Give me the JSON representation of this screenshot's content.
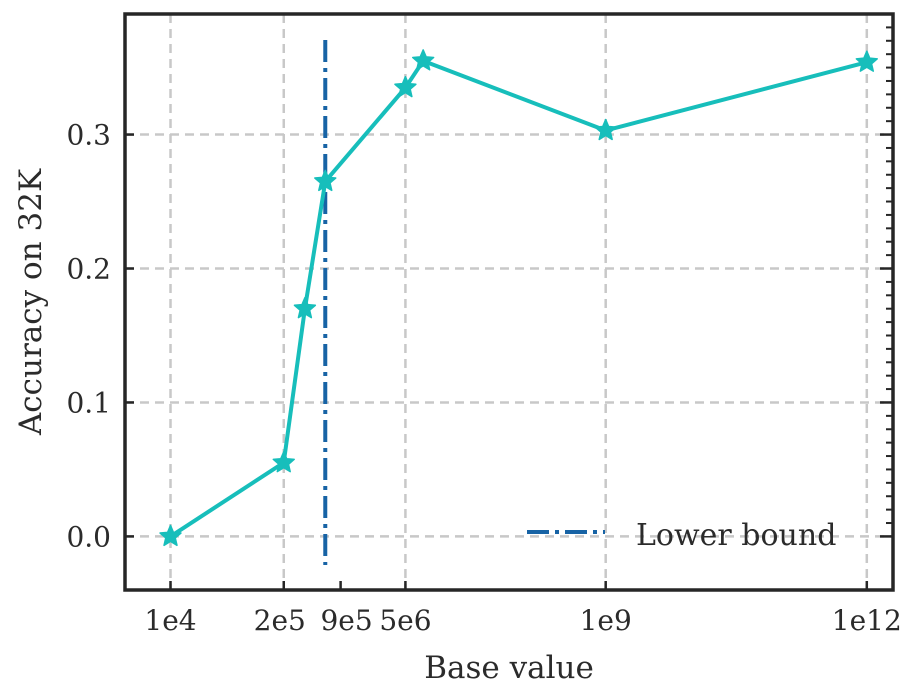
{
  "chart_data": {
    "type": "line",
    "title": "",
    "xlabel": "Base value",
    "ylabel": "Accuracy on 32K",
    "x_scale": "log",
    "xlim": [
      3000,
      2000000000000
    ],
    "ylim": [
      -0.04,
      0.39
    ],
    "grid": true,
    "legend_position": "bottom-right",
    "x_ticks": [
      {
        "value": 10000,
        "label": "1e4"
      },
      {
        "value": 200000,
        "label": "2e5"
      },
      {
        "value": 900000,
        "label": "9e5"
      },
      {
        "value": 5000000,
        "label": "5e6"
      },
      {
        "value": 1000000000,
        "label": "1e9"
      },
      {
        "value": 1000000000000,
        "label": "1e12"
      }
    ],
    "y_ticks": [
      {
        "value": 0.0,
        "label": "0.0"
      },
      {
        "value": 0.1,
        "label": "0.1"
      },
      {
        "value": 0.2,
        "label": "0.2"
      },
      {
        "value": 0.3,
        "label": "0.3"
      }
    ],
    "series": [
      {
        "name": "",
        "color": "#17bebb",
        "marker": "star",
        "x": [
          10000,
          200000,
          350000,
          600000,
          5000000,
          8000000,
          1000000000,
          1000000000000
        ],
        "y": [
          0.0,
          0.055,
          0.17,
          0.265,
          0.335,
          0.355,
          0.303,
          0.354
        ]
      }
    ],
    "reference_lines": [
      {
        "name": "Lower bound",
        "orientation": "vertical",
        "x": 600000,
        "color": "#1763a5",
        "style": "dash-dot"
      }
    ]
  }
}
